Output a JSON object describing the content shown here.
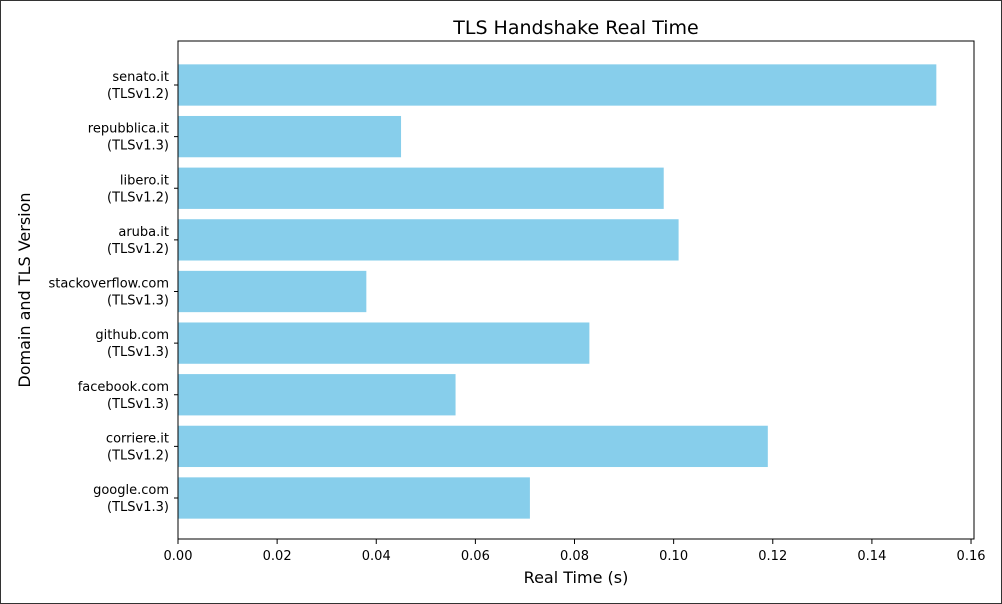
{
  "chart_data": {
    "type": "bar",
    "orientation": "horizontal",
    "title": "TLS Handshake Real Time",
    "xlabel": "Real Time (s)",
    "ylabel": "Domain and TLS Version",
    "categories": [
      [
        "google.com",
        "(TLSv1.3)"
      ],
      [
        "corriere.it",
        "(TLSv1.2)"
      ],
      [
        "facebook.com",
        "(TLSv1.3)"
      ],
      [
        "github.com",
        "(TLSv1.3)"
      ],
      [
        "stackoverflow.com",
        "(TLSv1.3)"
      ],
      [
        "aruba.it",
        "(TLSv1.2)"
      ],
      [
        "libero.it",
        "(TLSv1.2)"
      ],
      [
        "repubblica.it",
        "(TLSv1.3)"
      ],
      [
        "senato.it",
        "(TLSv1.2)"
      ]
    ],
    "values": [
      0.071,
      0.119,
      0.056,
      0.083,
      0.038,
      0.101,
      0.098,
      0.045,
      0.153
    ],
    "xlim": [
      0,
      0.1606
    ],
    "xticks": [
      "0.00",
      "0.02",
      "0.04",
      "0.06",
      "0.08",
      "0.10",
      "0.12",
      "0.14",
      "0.16"
    ],
    "bar_color": "#87CEEB",
    "grid": false,
    "legend": "none"
  }
}
